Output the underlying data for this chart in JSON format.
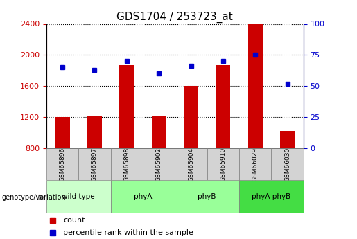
{
  "title": "GDS1704 / 253723_at",
  "samples": [
    "GSM65896",
    "GSM65897",
    "GSM65898",
    "GSM65902",
    "GSM65904",
    "GSM65910",
    "GSM66029",
    "GSM66030"
  ],
  "counts": [
    1200,
    1220,
    1870,
    1220,
    1600,
    1870,
    2400,
    1020
  ],
  "percentile_ranks": [
    65,
    63,
    70,
    60,
    66,
    70,
    75,
    52
  ],
  "ylim_left": [
    800,
    2400
  ],
  "ylim_right": [
    0,
    100
  ],
  "yticks_left": [
    800,
    1200,
    1600,
    2000,
    2400
  ],
  "yticks_right": [
    0,
    25,
    50,
    75,
    100
  ],
  "bar_color": "#cc0000",
  "dot_color": "#0000cc",
  "groups": [
    {
      "label": "wild type",
      "start": 0,
      "end": 2,
      "color": "#ccffcc"
    },
    {
      "label": "phyA",
      "start": 2,
      "end": 4,
      "color": "#99ff99"
    },
    {
      "label": "phyB",
      "start": 4,
      "end": 6,
      "color": "#99ff99"
    },
    {
      "label": "phyA phyB",
      "start": 6,
      "end": 8,
      "color": "#44dd44"
    }
  ],
  "bar_bottom": 800,
  "ylabel_left_color": "#cc0000",
  "ylabel_right_color": "#0000cc",
  "grid_color": "#000000"
}
